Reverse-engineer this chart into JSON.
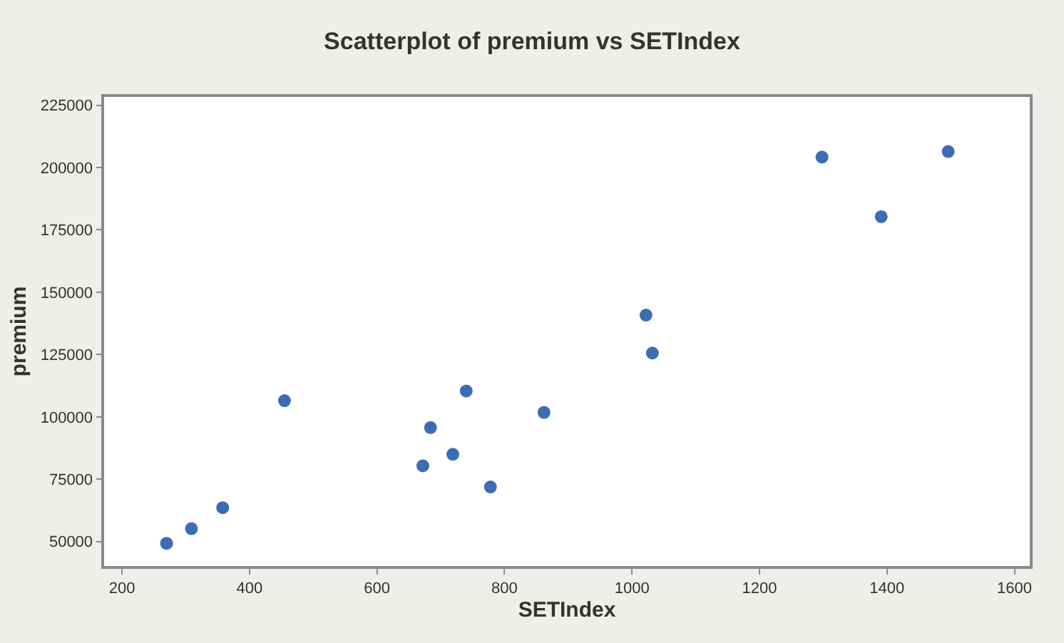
{
  "chart_data": {
    "type": "scatter",
    "title": "Scatterplot of premium vs SETIndex",
    "xlabel": "SETIndex",
    "ylabel": "premium",
    "x": [
      270,
      309,
      358,
      455,
      672,
      684,
      719,
      740,
      778,
      862,
      1022,
      1032,
      1298,
      1391,
      1496
    ],
    "series": [
      {
        "color": "#3c6db3",
        "values": [
          49300,
          55200,
          63600,
          106500,
          80400,
          95700,
          85000,
          110400,
          71900,
          101800,
          140800,
          125600,
          204200,
          180300,
          206400
        ]
      }
    ],
    "xlim": [
      172,
      1624
    ],
    "ylim": [
      40200,
      228300
    ],
    "xticks": [
      200,
      400,
      600,
      800,
      1000,
      1200,
      1400,
      1600
    ],
    "yticks": [
      50000,
      75000,
      100000,
      125000,
      150000,
      175000,
      200000,
      225000
    ],
    "marker": "circle"
  }
}
